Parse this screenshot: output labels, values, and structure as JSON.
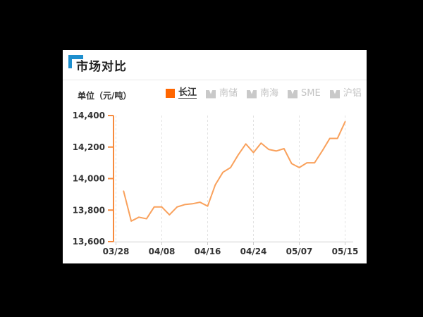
{
  "header": {
    "title": "市场对比",
    "accent_color": "#1e8fce"
  },
  "unit_label": "单位（元/吨）",
  "legend": {
    "selected_swatch_color": "#ff6600",
    "unselected_icon_color": "#c9c9c9",
    "items": [
      {
        "label": "长江",
        "selected": true
      },
      {
        "label": "南储",
        "selected": false
      },
      {
        "label": "南海",
        "selected": false
      },
      {
        "label": "SME",
        "selected": false
      },
      {
        "label": "沪铝",
        "selected": false
      }
    ]
  },
  "chart_data": {
    "type": "line",
    "title": "市场对比",
    "ylabel": "元/吨",
    "ylim": [
      13600,
      14400
    ],
    "y_ticks": [
      13600,
      13800,
      14000,
      14200,
      14400
    ],
    "y_tick_labels": [
      "13,600",
      "13,800",
      "14,000",
      "14,200",
      "14,400"
    ],
    "x_tick_labels": [
      "03/28",
      "04/08",
      "04/16",
      "04/24",
      "05/07",
      "05/15"
    ],
    "x_tick_indices": [
      0,
      6,
      12,
      18,
      24,
      30
    ],
    "x_index_range": [
      0,
      30
    ],
    "grid": "vertical-dashed",
    "legend_position": "top",
    "series": [
      {
        "name": "长江",
        "color": "#f9a15c",
        "start_index": 1,
        "values": [
          13920,
          13730,
          13755,
          13745,
          13820,
          13820,
          13770,
          13820,
          13835,
          13840,
          13850,
          13825,
          13960,
          14040,
          14070,
          14150,
          14220,
          14165,
          14225,
          14185,
          14175,
          14190,
          14095,
          14070,
          14100,
          14100,
          14175,
          14255,
          14255,
          14360
        ]
      }
    ],
    "colors": {
      "y_axis": "#f78b3d",
      "x_axis": "#cccccc",
      "gridline": "#e2e2e2",
      "axis_label": "#333333"
    }
  }
}
